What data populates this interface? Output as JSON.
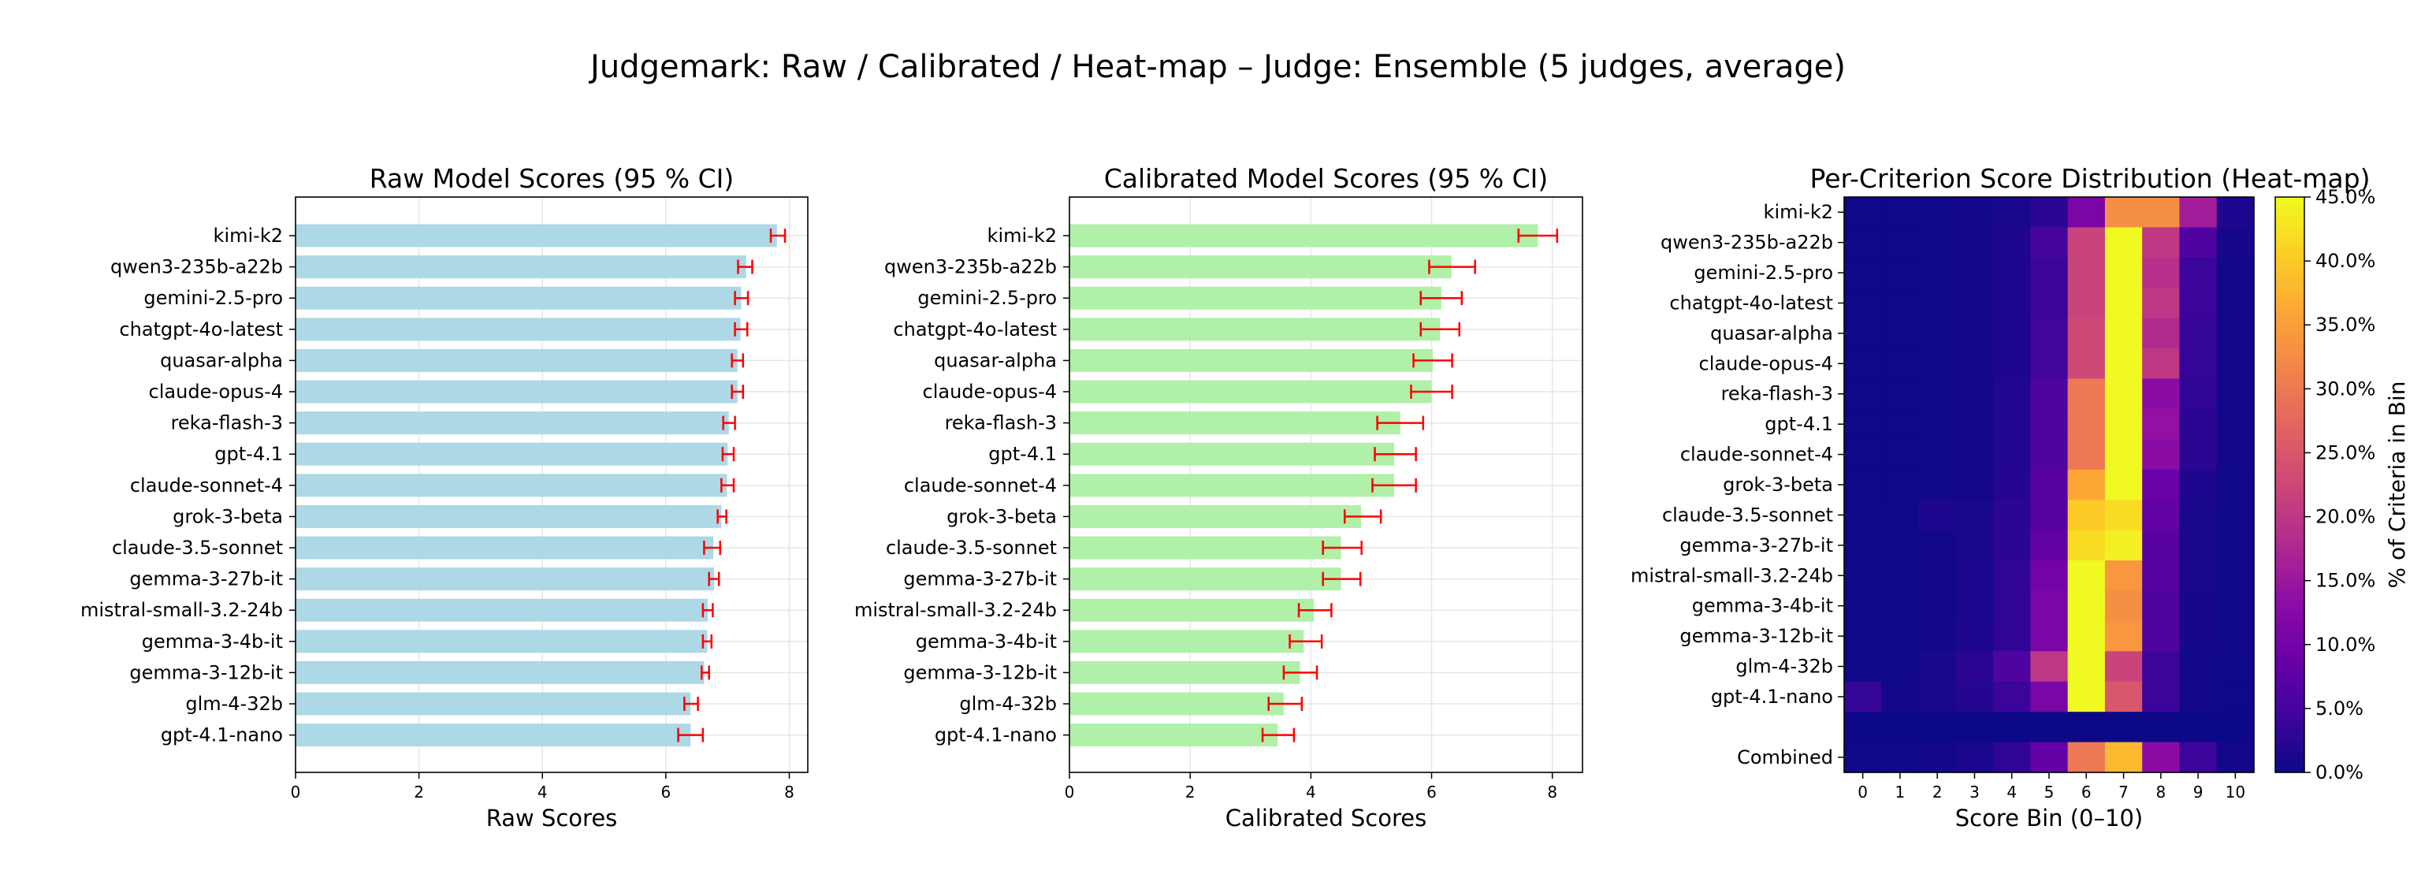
{
  "suptitle": "Judgemark: Raw / Calibrated / Heat-map – Judge: Ensemble (5 judges, average)",
  "colors": {
    "raw_bar": "#ADD8E6",
    "calibrated_bar": "#B0F0A8",
    "error_bar": "#FF0000",
    "grid": "#E6E6E6"
  },
  "chart_data": [
    {
      "type": "bar",
      "orientation": "horizontal",
      "title": "Raw Model Scores (95 % CI)",
      "xlabel": "Raw Scores",
      "ylabel": "",
      "xlim": [
        0,
        8.3
      ],
      "xticks": [
        0,
        2,
        4,
        6,
        8
      ],
      "grid": true,
      "categories": [
        "kimi-k2",
        "qwen3-235b-a22b",
        "gemini-2.5-pro",
        "chatgpt-4o-latest",
        "quasar-alpha",
        "claude-opus-4",
        "reka-flash-3",
        "gpt-4.1",
        "claude-sonnet-4",
        "grok-3-beta",
        "claude-3.5-sonnet",
        "gemma-3-27b-it",
        "mistral-small-3.2-24b",
        "gemma-3-4b-it",
        "gemma-3-12b-it",
        "glm-4-32b",
        "gpt-4.1-nano"
      ],
      "values": [
        7.8,
        7.3,
        7.22,
        7.21,
        7.16,
        7.16,
        7.02,
        7.0,
        6.99,
        6.9,
        6.77,
        6.78,
        6.68,
        6.67,
        6.62,
        6.4,
        6.4
      ],
      "ci_low": [
        7.7,
        7.17,
        7.12,
        7.12,
        7.07,
        7.07,
        6.93,
        6.92,
        6.9,
        6.84,
        6.62,
        6.7,
        6.6,
        6.6,
        6.58,
        6.3,
        6.2
      ],
      "ci_high": [
        7.93,
        7.4,
        7.33,
        7.32,
        7.25,
        7.25,
        7.12,
        7.1,
        7.1,
        6.98,
        6.88,
        6.86,
        6.76,
        6.74,
        6.7,
        6.52,
        6.6
      ]
    },
    {
      "type": "bar",
      "orientation": "horizontal",
      "title": "Calibrated Model Scores (95 % CI)",
      "xlabel": "Calibrated Scores",
      "ylabel": "",
      "xlim": [
        0,
        8.5
      ],
      "xticks": [
        0,
        2,
        4,
        6,
        8
      ],
      "grid": true,
      "categories": [
        "kimi-k2",
        "qwen3-235b-a22b",
        "gemini-2.5-pro",
        "chatgpt-4o-latest",
        "quasar-alpha",
        "claude-opus-4",
        "reka-flash-3",
        "gpt-4.1",
        "claude-sonnet-4",
        "grok-3-beta",
        "claude-3.5-sonnet",
        "gemma-3-27b-it",
        "mistral-small-3.2-24b",
        "gemma-3-4b-it",
        "gemma-3-12b-it",
        "glm-4-32b",
        "gpt-4.1-nano"
      ],
      "values": [
        7.76,
        6.33,
        6.16,
        6.14,
        6.02,
        6.0,
        5.48,
        5.38,
        5.38,
        4.83,
        4.5,
        4.5,
        4.05,
        3.88,
        3.82,
        3.55,
        3.45
      ],
      "ci_low": [
        7.44,
        5.96,
        5.82,
        5.82,
        5.7,
        5.66,
        5.1,
        5.06,
        5.02,
        4.56,
        4.2,
        4.2,
        3.8,
        3.65,
        3.55,
        3.3,
        3.2
      ],
      "ci_high": [
        8.08,
        6.72,
        6.5,
        6.46,
        6.34,
        6.34,
        5.86,
        5.74,
        5.74,
        5.16,
        4.84,
        4.82,
        4.34,
        4.18,
        4.1,
        3.85,
        3.72
      ]
    },
    {
      "type": "heatmap",
      "title": "Per-Criterion Score Distribution (Heat-map)",
      "xlabel": "Score Bin (0–10)",
      "ylabel": "",
      "x": [
        0,
        1,
        2,
        3,
        4,
        5,
        6,
        7,
        8,
        9,
        10
      ],
      "rows": [
        "kimi-k2",
        "qwen3-235b-a22b",
        "gemini-2.5-pro",
        "chatgpt-4o-latest",
        "quasar-alpha",
        "claude-opus-4",
        "reka-flash-3",
        "gpt-4.1",
        "claude-sonnet-4",
        "grok-3-beta",
        "claude-3.5-sonnet",
        "gemma-3-27b-it",
        "mistral-small-3.2-24b",
        "gemma-3-4b-it",
        "gemma-3-12b-it",
        "glm-4-32b",
        "gpt-4.1-nano",
        "",
        "Combined"
      ],
      "values": [
        [
          0.2,
          0.2,
          0.3,
          0.5,
          1.0,
          2.5,
          11.0,
          33.0,
          33.0,
          16.0,
          1.5
        ],
        [
          0.2,
          0.2,
          0.3,
          0.5,
          1.5,
          5.0,
          22.0,
          45.0,
          20.0,
          6.0,
          0.8
        ],
        [
          0.2,
          0.2,
          0.3,
          0.5,
          1.5,
          4.0,
          22.0,
          45.0,
          19.0,
          4.0,
          0.5
        ],
        [
          0.2,
          0.2,
          0.3,
          0.5,
          1.5,
          4.0,
          22.0,
          45.0,
          20.0,
          4.0,
          0.5
        ],
        [
          0.2,
          0.2,
          0.3,
          0.5,
          1.5,
          4.5,
          23.0,
          45.0,
          18.0,
          3.5,
          0.5
        ],
        [
          0.2,
          0.2,
          0.3,
          0.5,
          1.5,
          4.5,
          23.0,
          45.0,
          20.0,
          3.5,
          0.5
        ],
        [
          0.2,
          0.2,
          0.3,
          0.5,
          1.8,
          6.0,
          30.0,
          45.0,
          13.0,
          3.0,
          0.4
        ],
        [
          0.2,
          0.2,
          0.3,
          0.5,
          1.8,
          6.0,
          30.0,
          45.0,
          14.0,
          2.5,
          0.4
        ],
        [
          0.2,
          0.2,
          0.3,
          0.5,
          1.8,
          6.0,
          30.0,
          45.0,
          13.0,
          2.5,
          0.4
        ],
        [
          0.2,
          0.2,
          0.3,
          0.6,
          2.0,
          7.0,
          36.0,
          45.0,
          9.0,
          1.5,
          0.3
        ],
        [
          0.3,
          0.3,
          1.5,
          1.0,
          2.5,
          7.0,
          40.0,
          42.0,
          8.0,
          1.0,
          0.3
        ],
        [
          0.3,
          0.3,
          0.5,
          1.0,
          2.5,
          8.0,
          42.0,
          44.0,
          7.0,
          1.0,
          0.3
        ],
        [
          0.3,
          0.3,
          0.5,
          1.2,
          3.0,
          10.0,
          45.0,
          34.0,
          7.0,
          1.0,
          0.3
        ],
        [
          0.3,
          0.3,
          0.5,
          1.2,
          3.0,
          11.0,
          45.0,
          33.0,
          6.0,
          0.8,
          0.3
        ],
        [
          0.3,
          0.3,
          0.5,
          1.5,
          3.0,
          11.0,
          45.0,
          34.0,
          6.0,
          0.8,
          0.3
        ],
        [
          0.3,
          0.3,
          1.0,
          2.5,
          6.0,
          20.0,
          45.0,
          22.0,
          4.0,
          0.5,
          0.2
        ],
        [
          3.5,
          0.5,
          1.0,
          2.0,
          4.0,
          11.0,
          45.0,
          25.0,
          4.0,
          0.5,
          0.2
        ],
        [
          0,
          0,
          0,
          0,
          0,
          0,
          0,
          0,
          0,
          0,
          0
        ],
        [
          0.3,
          0.3,
          0.5,
          1.2,
          3.0,
          8.0,
          30.0,
          38.0,
          13.0,
          4.0,
          0.5
        ]
      ],
      "colormap": "plasma",
      "colorbar": {
        "label": "% of Criteria in Bin",
        "min": 0,
        "max": 45,
        "ticks": [
          "0.0%",
          "5.0%",
          "10.0%",
          "15.0%",
          "20.0%",
          "25.0%",
          "30.0%",
          "35.0%",
          "40.0%",
          "45.0%"
        ]
      }
    }
  ]
}
